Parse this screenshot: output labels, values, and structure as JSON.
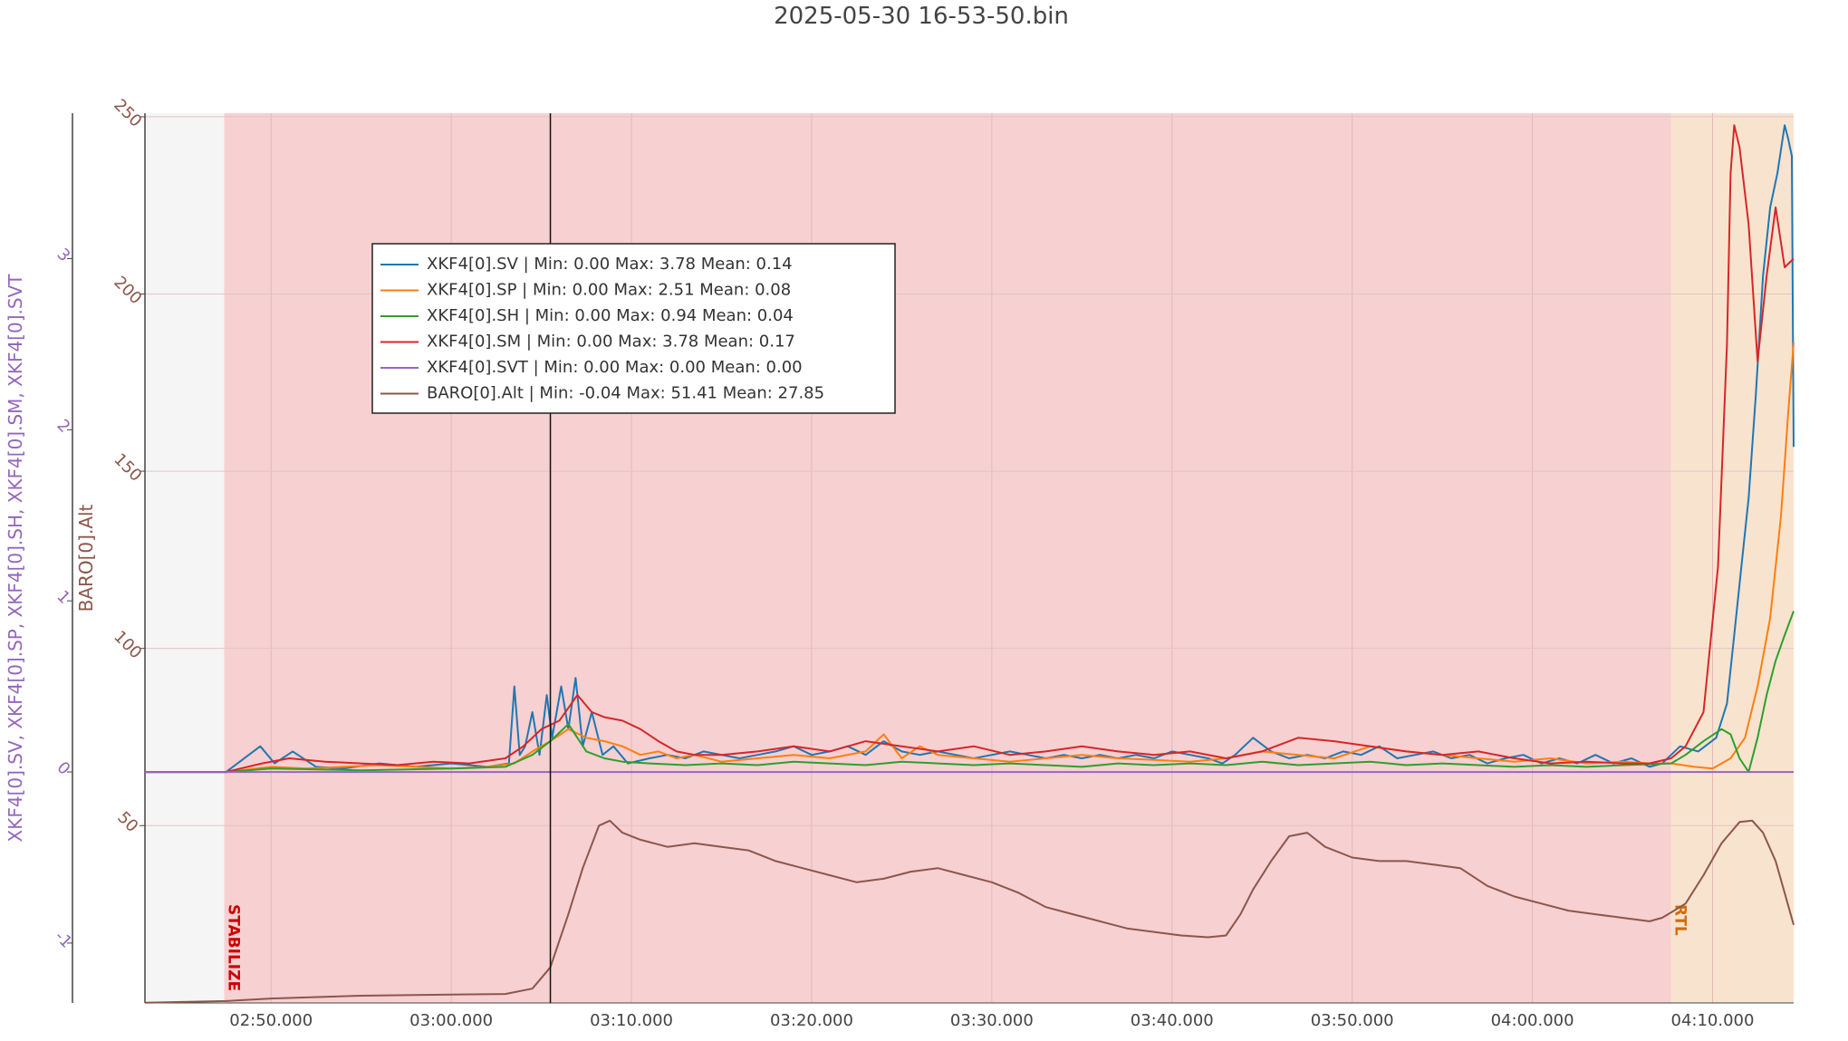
{
  "chart_data": {
    "type": "line",
    "title": "2025-05-30 16-53-50.bin",
    "x_tick_labels": [
      "02:50.000",
      "03:00.000",
      "03:10.000",
      "03:20.000",
      "03:30.000",
      "03:40.000",
      "03:50.000",
      "04:00.000",
      "04:10.000"
    ],
    "x_tick_seconds": [
      170,
      180,
      190,
      200,
      210,
      220,
      230,
      240,
      250
    ],
    "xlim_seconds": [
      163,
      254.5
    ],
    "y_left": {
      "label": "XKF4[0].SV, XKF4[0].SP, XKF4[0].SH, XKF4[0].SM, XKF4[0].SVT",
      "ticks": [
        -1,
        0,
        1,
        2,
        3
      ],
      "range": [
        -1.35,
        3.85
      ],
      "color": "#9467bd"
    },
    "y_right": {
      "label": "BARO[0].Alt",
      "ticks": [
        50,
        100,
        150,
        200,
        250
      ],
      "range": [
        -0.04,
        251
      ],
      "color": "#8c564b"
    },
    "modes": [
      {
        "name": "",
        "start": 163,
        "end": 167.4,
        "color": "#f5f5f5"
      },
      {
        "name": "STABILIZE",
        "start": 167.4,
        "end": 247.7,
        "color": "#f7d0d1",
        "label_color": "#cc0000"
      },
      {
        "name": "RTL",
        "start": 247.7,
        "end": 254.5,
        "color": "#f8e3cf",
        "label_color": "#d46a00"
      }
    ],
    "cursor_x": 185.5,
    "series": [
      {
        "name": "XKF4[0].SV",
        "axis": "left",
        "color": "#1f77b4",
        "stats": {
          "min": "Min: 0.00",
          "max": "Max: 3.78",
          "mean": "Mean: 0.14"
        },
        "x": [
          163,
          167.5,
          169.4,
          170.2,
          171.2,
          172.5,
          174,
          176,
          178,
          180,
          182,
          183.2,
          183.5,
          183.8,
          184.1,
          184.5,
          184.9,
          185.3,
          185.6,
          186.1,
          186.5,
          186.9,
          187.3,
          187.8,
          188.4,
          189,
          189.8,
          191,
          192,
          193,
          194,
          195,
          196,
          197,
          198,
          199,
          200,
          201,
          202,
          203,
          204,
          205,
          206,
          207,
          208,
          209,
          210,
          211,
          212,
          213,
          214,
          215,
          216,
          217,
          218,
          219,
          220,
          221,
          222,
          222.8,
          223.5,
          224.5,
          225.5,
          226.5,
          227.5,
          228.5,
          229.5,
          230.5,
          231.5,
          232.5,
          233.5,
          234.5,
          235.5,
          236.5,
          237.5,
          238.5,
          239.5,
          240.5,
          241.5,
          242.5,
          243.5,
          244.5,
          245.5,
          246.5,
          247.2,
          247.7,
          248.2,
          249.2,
          250.2,
          250.8,
          251.2,
          251.6,
          252,
          252.4,
          252.8,
          253.2,
          253.6,
          254,
          254.2,
          254.4,
          254.5
        ],
        "y": [
          0,
          0,
          0.15,
          0.05,
          0.12,
          0.03,
          0.02,
          0.05,
          0.03,
          0.05,
          0.03,
          0.05,
          0.5,
          0.1,
          0.15,
          0.35,
          0.1,
          0.45,
          0.2,
          0.5,
          0.25,
          0.55,
          0.15,
          0.35,
          0.1,
          0.15,
          0.05,
          0.08,
          0.1,
          0.08,
          0.12,
          0.1,
          0.08,
          0.1,
          0.12,
          0.15,
          0.1,
          0.12,
          0.15,
          0.1,
          0.18,
          0.12,
          0.1,
          0.12,
          0.1,
          0.08,
          0.1,
          0.12,
          0.1,
          0.08,
          0.1,
          0.08,
          0.1,
          0.08,
          0.1,
          0.08,
          0.12,
          0.1,
          0.08,
          0.05,
          0.1,
          0.2,
          0.12,
          0.08,
          0.1,
          0.08,
          0.12,
          0.1,
          0.15,
          0.08,
          0.1,
          0.12,
          0.08,
          0.1,
          0.05,
          0.08,
          0.1,
          0.05,
          0.08,
          0.05,
          0.1,
          0.05,
          0.08,
          0.03,
          0.05,
          0.1,
          0.15,
          0.12,
          0.2,
          0.4,
          0.8,
          1.2,
          1.6,
          2.2,
          2.9,
          3.3,
          3.5,
          3.78,
          3.7,
          3.6,
          1.9
        ]
      },
      {
        "name": "XKF4[0].SP",
        "axis": "left",
        "color": "#ff7f0e",
        "stats": {
          "min": "Min: 0.00",
          "max": "Max: 2.51",
          "mean": "Mean: 0.08"
        },
        "x": [
          163,
          167.5,
          170,
          172,
          174,
          176,
          178,
          180,
          182,
          183.5,
          184.5,
          185.5,
          186.5,
          187.5,
          188.5,
          189.5,
          190.5,
          191.5,
          192.5,
          193.5,
          195,
          197,
          199,
          201,
          203,
          204,
          205,
          206,
          207,
          209,
          211,
          213,
          215,
          217,
          219,
          221,
          223,
          225,
          227,
          229,
          231,
          233,
          235,
          237,
          239,
          241,
          243,
          245,
          246.5,
          247.7,
          249,
          250,
          251,
          251.8,
          252.5,
          253.2,
          253.8,
          254.2,
          254.5
        ],
        "y": [
          0,
          0,
          0.03,
          0.02,
          0.03,
          0.04,
          0.03,
          0.02,
          0.03,
          0.05,
          0.12,
          0.18,
          0.25,
          0.2,
          0.18,
          0.15,
          0.1,
          0.12,
          0.08,
          0.1,
          0.06,
          0.08,
          0.1,
          0.08,
          0.12,
          0.22,
          0.08,
          0.15,
          0.1,
          0.08,
          0.06,
          0.08,
          0.1,
          0.08,
          0.07,
          0.06,
          0.08,
          0.12,
          0.1,
          0.08,
          0.15,
          0.12,
          0.1,
          0.08,
          0.06,
          0.08,
          0.05,
          0.06,
          0.05,
          0.05,
          0.03,
          0.02,
          0.08,
          0.2,
          0.5,
          0.9,
          1.5,
          2.1,
          2.51
        ]
      },
      {
        "name": "XKF4[0].SH",
        "axis": "left",
        "color": "#2ca02c",
        "stats": {
          "min": "Min: 0.00",
          "max": "Max: 0.94",
          "mean": "Mean: 0.04"
        },
        "x": [
          163,
          167.5,
          170,
          175,
          180,
          183,
          184.5,
          185.5,
          186.5,
          187.5,
          188.5,
          189.5,
          191,
          193,
          195,
          197,
          199,
          201,
          203,
          205,
          207,
          209,
          211,
          213,
          215,
          217,
          219,
          221,
          223,
          225,
          227,
          229,
          231,
          233,
          235,
          237,
          239,
          241,
          243,
          245,
          247.7,
          248.5,
          249.5,
          250.5,
          251,
          251.5,
          252,
          252.5,
          253,
          253.5,
          254,
          254.5
        ],
        "y": [
          0,
          0,
          0.02,
          0.01,
          0.02,
          0.03,
          0.1,
          0.18,
          0.28,
          0.12,
          0.08,
          0.06,
          0.05,
          0.04,
          0.05,
          0.04,
          0.06,
          0.05,
          0.04,
          0.06,
          0.05,
          0.04,
          0.05,
          0.04,
          0.03,
          0.05,
          0.04,
          0.05,
          0.04,
          0.06,
          0.04,
          0.05,
          0.06,
          0.04,
          0.05,
          0.04,
          0.03,
          0.04,
          0.03,
          0.04,
          0.05,
          0.1,
          0.18,
          0.25,
          0.22,
          0.08,
          0.0,
          0.2,
          0.45,
          0.65,
          0.8,
          0.94
        ]
      },
      {
        "name": "XKF4[0].SM",
        "axis": "left",
        "color": "#d62728",
        "stats": {
          "min": "Min: 0.00",
          "max": "Max: 3.78",
          "mean": "Mean: 0.17"
        },
        "x": [
          163,
          167.5,
          169.5,
          171,
          173,
          175,
          177,
          179,
          181,
          183,
          184,
          185,
          186,
          187,
          187.8,
          188.5,
          189.5,
          190.5,
          191.5,
          192.5,
          193.5,
          195,
          197,
          199,
          201,
          203,
          205,
          207,
          209,
          211,
          213,
          215,
          217,
          219,
          221,
          223,
          225,
          227,
          229,
          231,
          233,
          235,
          237,
          239,
          241,
          243,
          245,
          246.5,
          247.7,
          248.5,
          249.5,
          250.3,
          250.8,
          251,
          251.2,
          251.5,
          252,
          252.5,
          253,
          253.5,
          254,
          254.5
        ],
        "y": [
          0,
          0,
          0.05,
          0.08,
          0.06,
          0.05,
          0.04,
          0.06,
          0.05,
          0.08,
          0.15,
          0.25,
          0.3,
          0.45,
          0.35,
          0.32,
          0.3,
          0.25,
          0.18,
          0.12,
          0.1,
          0.1,
          0.12,
          0.15,
          0.12,
          0.18,
          0.15,
          0.12,
          0.15,
          0.1,
          0.12,
          0.15,
          0.12,
          0.1,
          0.12,
          0.08,
          0.12,
          0.2,
          0.18,
          0.15,
          0.12,
          0.1,
          0.12,
          0.08,
          0.05,
          0.06,
          0.05,
          0.05,
          0.08,
          0.15,
          0.35,
          1.2,
          2.5,
          3.5,
          3.78,
          3.65,
          3.2,
          2.4,
          2.9,
          3.3,
          2.95,
          3.0
        ]
      },
      {
        "name": "XKF4[0].SVT",
        "axis": "left",
        "color": "#9467bd",
        "stats": {
          "min": "Min: 0.00",
          "max": "Max: 0.00",
          "mean": "Mean: 0.00"
        },
        "x": [
          163,
          254.5
        ],
        "y": [
          0,
          0
        ]
      },
      {
        "name": "BARO[0].Alt",
        "axis": "right",
        "color": "#8c564b",
        "stats": {
          "min": "Min: -0.04",
          "max": "Max: 51.41",
          "mean": "Mean: 27.85"
        },
        "x": [
          163,
          167.5,
          170,
          175,
          180,
          183,
          184.5,
          185.5,
          186.5,
          187.3,
          188.2,
          188.8,
          189.5,
          190.5,
          192,
          193.5,
          195,
          196.5,
          198,
          199.5,
          201,
          202.5,
          204,
          205.5,
          207,
          208.5,
          210,
          211.5,
          213,
          214.5,
          216,
          217.5,
          219,
          220.5,
          222,
          223,
          223.8,
          224.5,
          225.5,
          226.5,
          227.5,
          228.5,
          230,
          231.5,
          233,
          234.5,
          236,
          237.5,
          239,
          240.5,
          242,
          243.5,
          245,
          246.5,
          247.2,
          247.7,
          248.5,
          249.5,
          250.5,
          251.5,
          252.2,
          252.8,
          253.5,
          254,
          254.5
        ],
        "y": [
          0,
          0.5,
          1.2,
          2.0,
          2.3,
          2.5,
          4.0,
          10,
          25,
          38,
          50,
          51.4,
          48,
          46,
          44,
          45,
          44,
          43,
          40,
          38,
          36,
          34,
          35,
          37,
          38,
          36,
          34,
          31,
          27,
          25,
          23,
          21,
          20,
          19,
          18.5,
          19,
          25,
          32,
          40,
          47,
          48,
          44,
          41,
          40,
          40,
          39,
          38,
          33,
          30,
          28,
          26,
          25,
          24,
          23,
          24,
          25.5,
          28,
          36,
          45,
          51,
          51.4,
          48,
          40,
          31,
          22
        ]
      }
    ]
  }
}
